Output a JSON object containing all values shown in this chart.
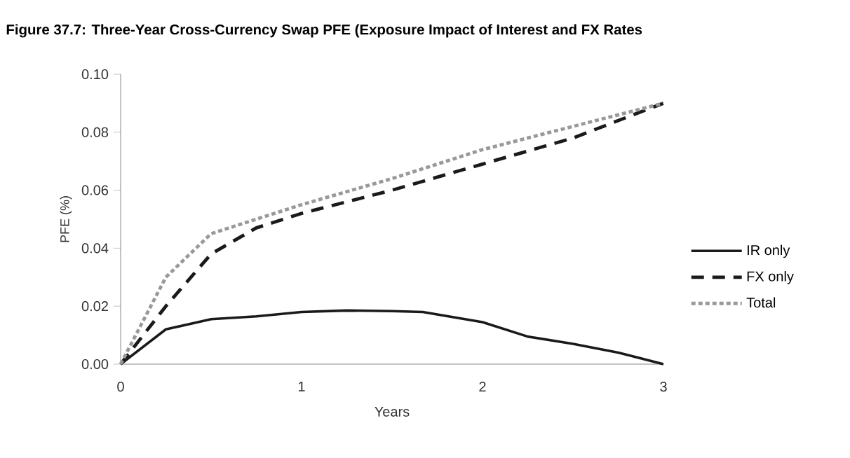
{
  "chart_data": {
    "type": "line",
    "title": "Figure 37.7: Three-Year Cross-Currency Swap PFE (Exposure Impact of Interest and FX Rates",
    "xlabel": "Years",
    "ylabel": "PFE (%)",
    "xlim": [
      0,
      3
    ],
    "xticks": [
      0,
      1,
      2,
      3
    ],
    "ylim": [
      0,
      0.1
    ],
    "yticks": [
      {
        "value": 0,
        "label": "0.00"
      },
      {
        "value": 0.02,
        "label": "0.02"
      },
      {
        "value": 0.04,
        "label": "0.04"
      },
      {
        "value": 0.06,
        "label": "0.06"
      },
      {
        "value": 0.08,
        "label": "0.08"
      },
      {
        "value": 0.1,
        "label": "0.10"
      }
    ],
    "legend": "right",
    "grid": false,
    "series": [
      {
        "name": "IR only",
        "color": "#1a1a1a",
        "line_style": "solid",
        "x": [
          0,
          0.25,
          0.5,
          0.75,
          1,
          1.25,
          1.5,
          1.67,
          2,
          2.25,
          2.5,
          2.75,
          3
        ],
        "values": [
          0,
          0.012,
          0.0155,
          0.0165,
          0.018,
          0.0185,
          0.0183,
          0.018,
          0.0145,
          0.0095,
          0.007,
          0.004,
          0
        ]
      },
      {
        "name": "FX only",
        "color": "#1a1a1a",
        "line_style": "dashed",
        "x": [
          0,
          0.25,
          0.5,
          0.75,
          1,
          1.5,
          2,
          2.5,
          3
        ],
        "values": [
          0,
          0.02,
          0.038,
          0.047,
          0.052,
          0.06,
          0.069,
          0.078,
          0.09
        ]
      },
      {
        "name": "Total",
        "color": "#999999",
        "line_style": "dotted",
        "x": [
          0,
          0.25,
          0.5,
          0.75,
          1,
          1.5,
          2,
          2.5,
          3
        ],
        "values": [
          0,
          0.03,
          0.045,
          0.05,
          0.055,
          0.064,
          0.074,
          0.082,
          0.09
        ]
      }
    ]
  }
}
